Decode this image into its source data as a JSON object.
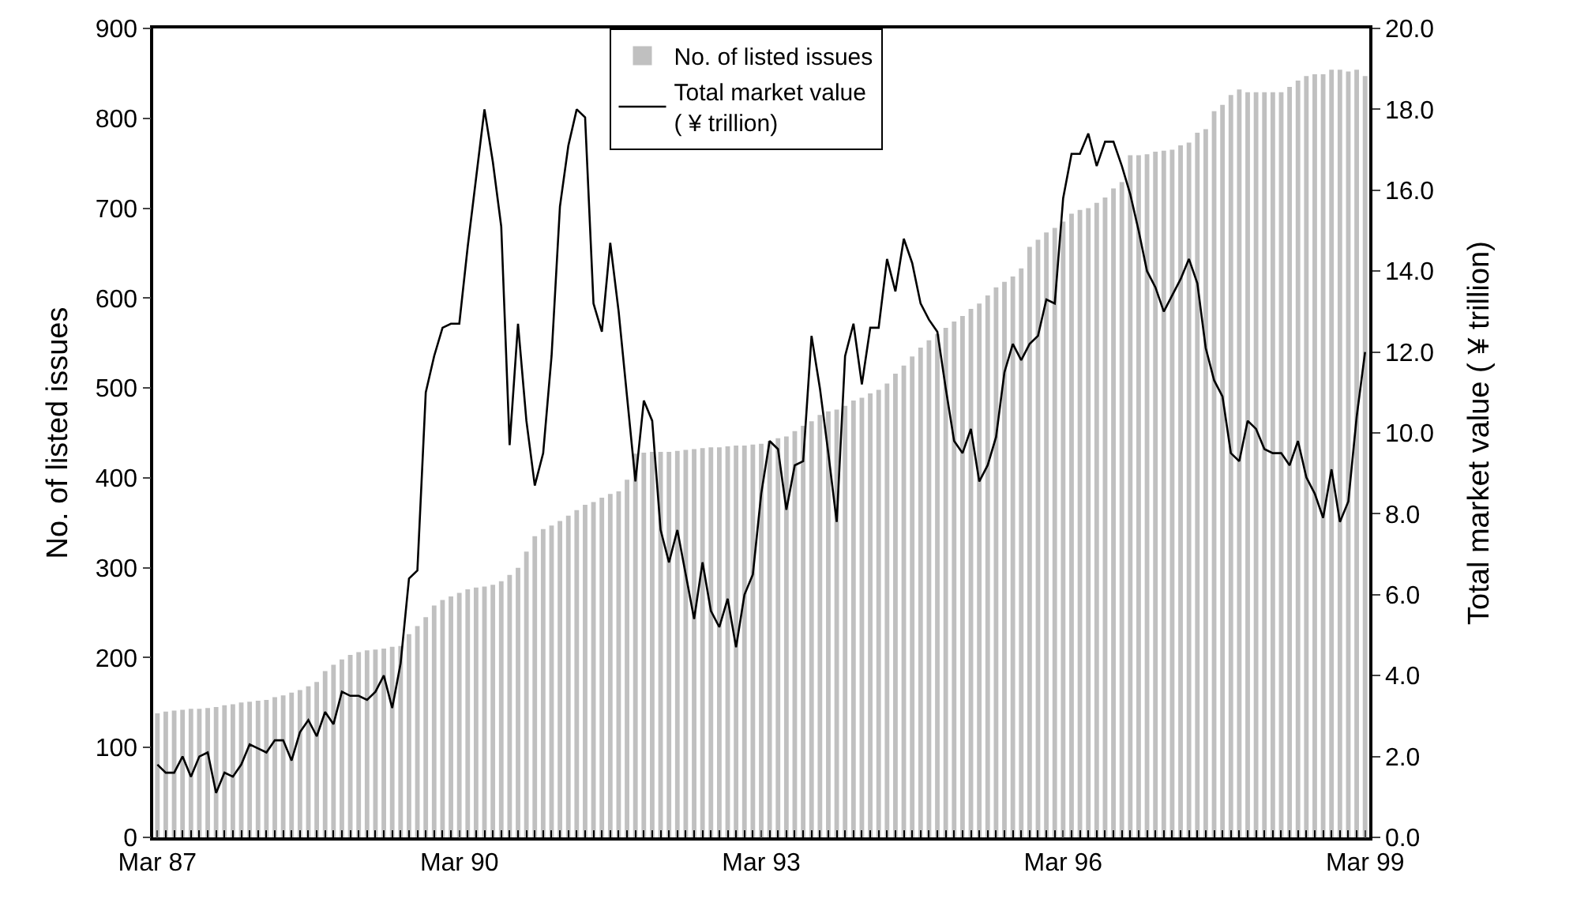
{
  "chart_data": {
    "type": "bar",
    "ylabel": "No. of listed issues",
    "y2label": "Total market value ( ¥ trillion)",
    "categories": [
      "Mar 87",
      null,
      null,
      null,
      null,
      null,
      null,
      null,
      null,
      null,
      null,
      null,
      null,
      null,
      null,
      null,
      null,
      null,
      null,
      null,
      null,
      null,
      null,
      null,
      null,
      null,
      null,
      null,
      null,
      null,
      null,
      null,
      null,
      null,
      null,
      null,
      "Mar 90",
      null,
      null,
      null,
      null,
      null,
      null,
      null,
      null,
      null,
      null,
      null,
      null,
      null,
      null,
      null,
      null,
      null,
      null,
      null,
      null,
      null,
      null,
      null,
      null,
      null,
      null,
      null,
      null,
      null,
      null,
      null,
      null,
      null,
      null,
      null,
      "Mar 93",
      null,
      null,
      null,
      null,
      null,
      null,
      null,
      null,
      null,
      null,
      null,
      null,
      null,
      null,
      null,
      null,
      null,
      null,
      null,
      null,
      null,
      null,
      null,
      null,
      null,
      null,
      null,
      null,
      null,
      null,
      null,
      null,
      null,
      null,
      null,
      "Mar 96",
      null,
      null,
      null,
      null,
      null,
      null,
      null,
      null,
      null,
      null,
      null,
      null,
      null,
      null,
      null,
      null,
      null,
      null,
      null,
      null,
      null,
      null,
      null,
      null,
      null,
      null,
      null,
      null,
      null,
      null,
      null,
      null,
      null,
      null,
      null,
      "Mar 99"
    ],
    "series": [
      {
        "name": "No. of listed issues",
        "color": "#c0c0c0",
        "values": [
          138,
          140,
          141,
          142,
          143,
          143,
          144,
          145,
          147,
          148,
          150,
          151,
          152,
          153,
          156,
          158,
          161,
          164,
          168,
          173,
          185,
          192,
          198,
          203,
          206,
          208,
          209,
          210,
          212,
          213,
          226,
          235,
          245,
          258,
          264,
          268,
          272,
          276,
          278,
          279,
          281,
          285,
          292,
          300,
          318,
          335,
          343,
          347,
          352,
          358,
          364,
          370,
          373,
          378,
          382,
          385,
          398,
          427,
          428,
          429,
          429,
          429,
          430,
          431,
          432,
          433,
          434,
          434,
          435,
          436,
          436,
          437,
          438,
          441,
          444,
          446,
          452,
          458,
          463,
          470,
          474,
          476,
          480,
          486,
          489,
          494,
          498,
          505,
          516,
          525,
          535,
          545,
          553,
          560,
          567,
          574,
          580,
          588,
          594,
          603,
          612,
          618,
          624,
          633,
          657,
          665,
          673,
          678,
          685,
          694,
          698,
          700,
          706,
          712,
          722,
          729,
          759,
          759,
          760,
          763,
          764,
          765,
          770,
          773,
          784,
          788,
          808,
          815,
          826,
          832,
          829,
          829,
          829,
          829,
          829,
          835,
          842,
          847,
          849,
          849,
          854,
          854,
          852,
          854,
          847
        ]
      },
      {
        "name": "Total market value\n( ¥ trillion)",
        "type": "line",
        "axis": "y2",
        "color": "#000000",
        "values": [
          1.8,
          1.6,
          1.6,
          2.0,
          1.5,
          2.0,
          2.1,
          1.1,
          1.6,
          1.5,
          1.8,
          2.3,
          2.2,
          2.1,
          2.4,
          2.4,
          1.9,
          2.6,
          2.9,
          2.5,
          3.1,
          2.8,
          3.6,
          3.5,
          3.5,
          3.4,
          3.6,
          4.0,
          3.2,
          4.3,
          6.4,
          6.6,
          11.0,
          11.9,
          12.6,
          12.7,
          12.7,
          14.6,
          16.3,
          18.0,
          16.7,
          15.1,
          9.7,
          12.7,
          10.3,
          8.7,
          9.5,
          11.9,
          15.6,
          17.1,
          18.0,
          17.8,
          13.2,
          12.5,
          14.7,
          13.0,
          10.9,
          8.8,
          10.8,
          10.3,
          7.6,
          6.8,
          7.6,
          6.5,
          5.4,
          6.8,
          5.6,
          5.2,
          5.9,
          4.7,
          6.0,
          6.5,
          8.5,
          9.8,
          9.6,
          8.1,
          9.2,
          9.3,
          12.4,
          11.1,
          9.5,
          7.8,
          11.9,
          12.7,
          11.2,
          12.6,
          12.6,
          14.3,
          13.5,
          14.8,
          14.2,
          13.2,
          12.8,
          12.5,
          11.1,
          9.8,
          9.5,
          10.1,
          8.8,
          9.2,
          9.9,
          11.5,
          12.2,
          11.8,
          12.2,
          12.4,
          13.3,
          13.2,
          15.8,
          16.9,
          16.9,
          17.4,
          16.6,
          17.2,
          17.2,
          16.6,
          15.9,
          15.0,
          14.0,
          13.6,
          13.0,
          13.4,
          13.8,
          14.3,
          13.7,
          12.1,
          11.3,
          10.9,
          9.5,
          9.3,
          10.3,
          10.1,
          9.6,
          9.5,
          9.5,
          9.2,
          9.8,
          8.9,
          8.5,
          7.9,
          9.1,
          7.8,
          8.3,
          10.4,
          12.0
        ]
      }
    ],
    "ylim": [
      0,
      900
    ],
    "yticks": [
      0,
      100,
      200,
      300,
      400,
      500,
      600,
      700,
      800,
      900
    ],
    "y2lim": [
      0,
      20
    ],
    "y2ticks": [
      {
        "value": 0,
        "label": "0.0"
      },
      {
        "value": 2,
        "label": "2.0"
      },
      {
        "value": 4,
        "label": "4.0"
      },
      {
        "value": 6,
        "label": "6.0"
      },
      {
        "value": 8,
        "label": "8.0"
      },
      {
        "value": 10,
        "label": "10.0"
      },
      {
        "value": 12,
        "label": "12.0"
      },
      {
        "value": 14,
        "label": "14.0"
      },
      {
        "value": 16,
        "label": "16.0"
      },
      {
        "value": 18,
        "label": "18.0"
      },
      {
        "value": 20,
        "label": "20.0"
      }
    ],
    "legend": "top",
    "marker": "none",
    "line_style": "solid"
  }
}
